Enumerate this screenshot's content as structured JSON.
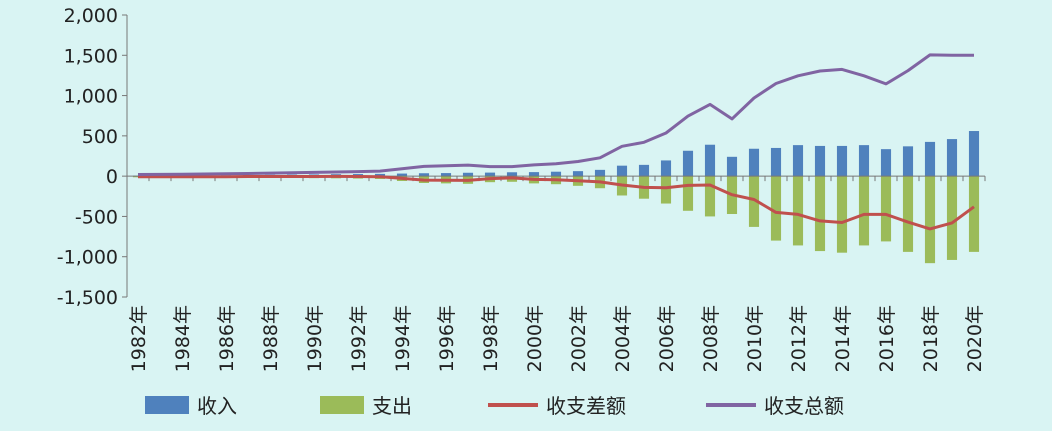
{
  "chart_data": {
    "type": "bar",
    "title": "",
    "xlabel": "",
    "ylabel": "",
    "ylim": [
      -1500,
      2000
    ],
    "yticks": [
      -1500,
      -1000,
      -500,
      0,
      500,
      1000,
      1500,
      2000
    ],
    "ytick_labels": [
      "-1,500",
      "-1,000",
      "-500",
      "0",
      "500",
      "1,000",
      "1,500",
      "2,000"
    ],
    "grid": false,
    "legend_position": "bottom",
    "categories": [
      "1982年",
      "1983年",
      "1984年",
      "1985年",
      "1986年",
      "1987年",
      "1988年",
      "1989年",
      "1990年",
      "1991年",
      "1992年",
      "1993年",
      "1994年",
      "1995年",
      "1996年",
      "1997年",
      "1998年",
      "1999年",
      "2000年",
      "2001年",
      "2002年",
      "2003年",
      "2004年",
      "2005年",
      "2006年",
      "2007年",
      "2008年",
      "2009年",
      "2010年",
      "2011年",
      "2012年",
      "2013年",
      "2014年",
      "2015年",
      "2016年",
      "2017年",
      "2018年",
      "2019年",
      "2020年"
    ],
    "x_tick_labels": [
      "1982年",
      "1984年",
      "1986年",
      "1988年",
      "1990年",
      "1992年",
      "1994年",
      "1996年",
      "1998年",
      "2000年",
      "2002年",
      "2004年",
      "2006年",
      "2008年",
      "2010年",
      "2012年",
      "2014年",
      "2016年",
      "2018年",
      "2020年"
    ],
    "series": [
      {
        "name": "收入",
        "kind": "bar",
        "color": "#4f81bd",
        "values": [
          6,
          7,
          8,
          10,
          11,
          14,
          17,
          19,
          21,
          24,
          26,
          28,
          32,
          36,
          38,
          42,
          44,
          48,
          50,
          55,
          62,
          78,
          130,
          140,
          195,
          315,
          390,
          240,
          340,
          350,
          385,
          375,
          375,
          385,
          335,
          370,
          425,
          460,
          560
        ]
      },
      {
        "name": "支出",
        "kind": "bar",
        "color": "#9bbb59",
        "values": [
          -14,
          -15,
          -16,
          -17,
          -18,
          -19,
          -21,
          -23,
          -25,
          -27,
          -30,
          -35,
          -60,
          -85,
          -90,
          -95,
          -75,
          -70,
          -90,
          -100,
          -120,
          -150,
          -240,
          -280,
          -340,
          -430,
          -500,
          -470,
          -630,
          -800,
          -860,
          -930,
          -950,
          -860,
          -810,
          -940,
          -1080,
          -1040,
          -940
        ]
      },
      {
        "name": "收支差额",
        "kind": "line",
        "color": "#c0504d",
        "values": [
          -8,
          -8,
          -8,
          -7,
          -7,
          -5,
          -4,
          -4,
          -4,
          -3,
          -4,
          -7,
          -28,
          -49,
          -52,
          -53,
          -31,
          -22,
          -40,
          -45,
          -58,
          -72,
          -110,
          -140,
          -145,
          -115,
          -110,
          -230,
          -290,
          -450,
          -475,
          -555,
          -575,
          -475,
          -475,
          -570,
          -655,
          -580,
          -380
        ]
      },
      {
        "name": "收支总额",
        "kind": "line",
        "color": "#8064a2",
        "values": [
          20,
          22,
          24,
          27,
          29,
          33,
          38,
          42,
          46,
          51,
          56,
          63,
          92,
          121,
          128,
          137,
          119,
          118,
          140,
          155,
          182,
          228,
          370,
          420,
          535,
          745,
          890,
          710,
          970,
          1150,
          1245,
          1305,
          1325,
          1245,
          1145,
          1310,
          1505,
          1500,
          1500
        ]
      }
    ]
  }
}
